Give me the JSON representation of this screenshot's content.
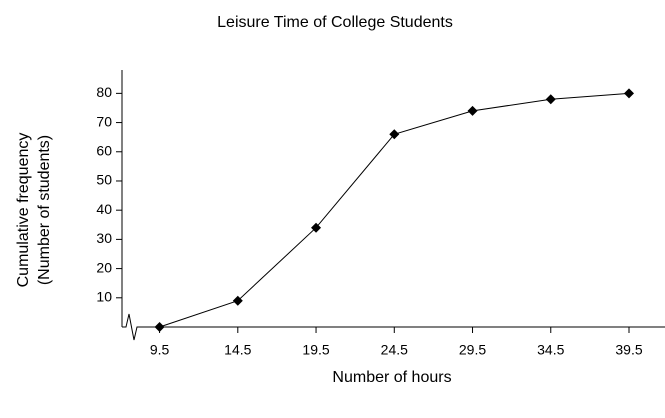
{
  "chart_data": {
    "type": "line",
    "title": "Leisure Time of College Students",
    "x_label": "Number of hours",
    "y_label": [
      "Cumulative frequency",
      "(Number of students)"
    ],
    "x": [
      9.5,
      14.5,
      19.5,
      24.5,
      29.5,
      34.5,
      39.5
    ],
    "series": [
      {
        "values": [
          0,
          9,
          34,
          66,
          74,
          78,
          80
        ],
        "color": "#000000"
      }
    ],
    "xlim": [
      7.1,
      41.8
    ],
    "xticks": [
      9.5,
      14.5,
      19.5,
      24.5,
      29.5,
      34.5,
      39.5
    ],
    "ylim": [
      0,
      88
    ],
    "yticks": [
      10,
      20,
      30,
      40,
      50,
      60,
      70,
      80
    ],
    "grid": false
  }
}
